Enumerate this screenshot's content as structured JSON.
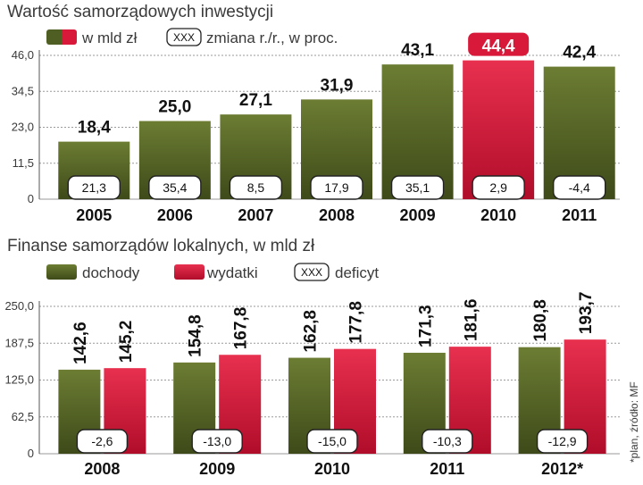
{
  "colors": {
    "olive": "#5a6a2a",
    "olive_dark": "#46531e",
    "red": "#d8193a",
    "red_dark": "#b40f2c",
    "highlight_label_bg": "#d8193a"
  },
  "chart_data": [
    {
      "type": "bar",
      "title": "Wartość samorządowych inwestycji",
      "legend": [
        {
          "swatch": "olive-red-gradient",
          "label": "w mld zł"
        },
        {
          "swatch": "box",
          "box_text": "XXX",
          "label": "zmiana r./r., w proc."
        }
      ],
      "categories": [
        "2005",
        "2006",
        "2007",
        "2008",
        "2009",
        "2010",
        "2011"
      ],
      "values": [
        18.4,
        25.0,
        27.1,
        31.9,
        43.1,
        44.4,
        42.4
      ],
      "value_labels": [
        "18,4",
        "25,0",
        "27,1",
        "31,9",
        "43,1",
        "44,4",
        "42,4"
      ],
      "change_labels": [
        "21,3",
        "35,4",
        "8,5",
        "17,9",
        "35,1",
        "2,9",
        "-4,4"
      ],
      "highlight_index": 5,
      "ylim": [
        0,
        46
      ],
      "yticks": [
        0,
        11.5,
        23,
        34.5,
        46
      ],
      "ytick_labels": [
        "0",
        "11,5",
        "23,0",
        "34,5",
        "46,0"
      ],
      "grid": true
    },
    {
      "type": "bar",
      "title": "Finanse samorządów lokalnych, w mld zł",
      "legend": [
        {
          "swatch": "olive",
          "label": "dochody"
        },
        {
          "swatch": "red",
          "label": "wydatki"
        },
        {
          "swatch": "box",
          "box_text": "XXX",
          "label": "deficyt"
        }
      ],
      "categories": [
        "2008",
        "2009",
        "2010",
        "2011",
        "2012*"
      ],
      "series": [
        {
          "name": "dochody",
          "values": [
            142.6,
            154.8,
            162.8,
            171.3,
            180.8
          ],
          "labels": [
            "142,6",
            "154,8",
            "162,8",
            "171,3",
            "180,8"
          ]
        },
        {
          "name": "wydatki",
          "values": [
            145.2,
            167.8,
            177.8,
            181.6,
            193.7
          ],
          "labels": [
            "145,2",
            "167,8",
            "177,8",
            "181,6",
            "193,7"
          ]
        }
      ],
      "deficit_labels": [
        "-2,6",
        "-13,0",
        "-15,0",
        "-10,3",
        "-12,9"
      ],
      "ylim": [
        0,
        250
      ],
      "yticks": [
        0,
        62.5,
        125,
        187.5,
        250
      ],
      "ytick_labels": [
        "0",
        "62,5",
        "125,0",
        "187,5",
        "250,0"
      ],
      "grid": true
    }
  ],
  "source_note": "*plan, źródło: MF"
}
